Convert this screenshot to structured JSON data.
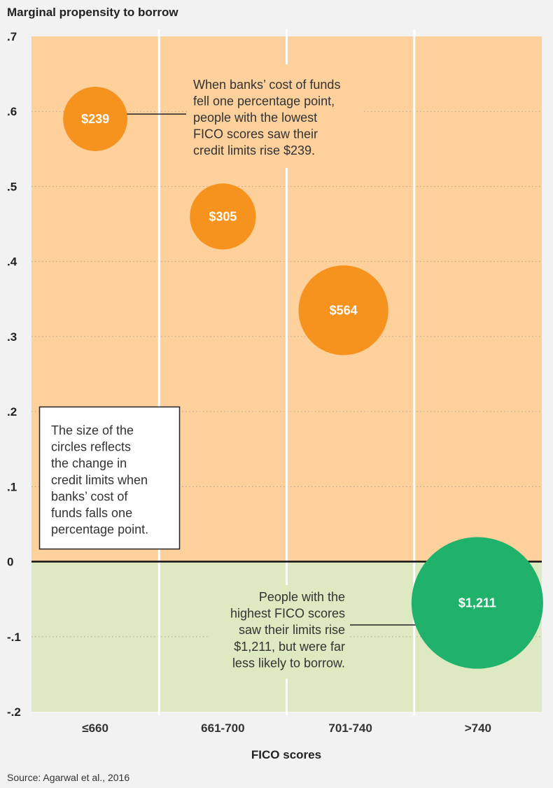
{
  "chart_data": {
    "type": "scatter",
    "subtype": "bubble",
    "title": "Marginal propensity to borrow",
    "xlabel": "FICO scores",
    "ylabel": "Marginal propensity to borrow",
    "categories": [
      "≤660",
      "661-700",
      "701-740",
      ">740"
    ],
    "ylim": [
      -0.2,
      0.7
    ],
    "yticks": [
      0.7,
      0.6,
      0.5,
      0.4,
      0.3,
      0.2,
      0.1,
      0,
      -0.1,
      -0.2
    ],
    "ytick_labels": [
      ".7",
      ".6",
      ".5",
      ".4",
      ".3",
      ".2",
      ".1",
      "0",
      "-.1",
      "-.2"
    ],
    "grid": "dotted horizontal",
    "points": [
      {
        "category": "≤660",
        "y": 0.59,
        "size_value": 239,
        "label": "$239",
        "color": "#f5931e"
      },
      {
        "category": "661-700",
        "y": 0.46,
        "size_value": 305,
        "label": "$305",
        "color": "#f5931e"
      },
      {
        "category": "701-740",
        "y": 0.335,
        "size_value": 564,
        "label": "$564",
        "color": "#f5931e"
      },
      {
        "category": ">740",
        "y": -0.055,
        "size_value": 1211,
        "label": "$1,211",
        "color": "#20b26b"
      }
    ],
    "annotations": {
      "top": [
        "When banks’ cost of funds",
        "fell one percentage point,",
        "people with the lowest",
        "FICO scores saw their",
        "credit limits rise $239."
      ],
      "box": [
        "The size of the",
        "circles reflects",
        "the change in",
        "credit limits when",
        "banks’ cost of",
        "funds falls one",
        "percentage point."
      ],
      "bottom": [
        "People with the",
        "highest FICO scores",
        "saw their limits rise",
        "$1,211, but were far",
        "less likely to borrow."
      ]
    },
    "source": "Source: Agarwal et al., 2016",
    "colors": {
      "positive_band": "#fdd09c",
      "negative_band": "#dde9c0",
      "background": "#f2f2f2"
    }
  }
}
